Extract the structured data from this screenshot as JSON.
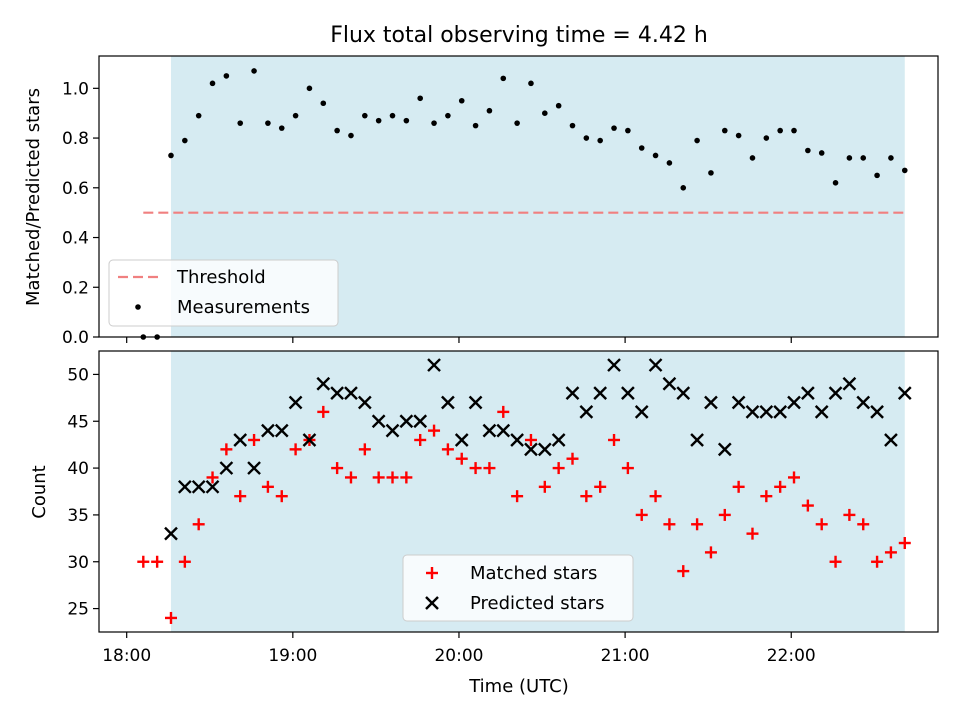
{
  "chart_data": [
    {
      "type": "scatter",
      "title": "Flux total observing time = 4.42 h",
      "xlabel": "",
      "ylabel": "Matched/Predicted stars",
      "xlim": [
        "17:50",
        "22:53"
      ],
      "ylim": [
        0.0,
        1.13
      ],
      "yticks": [
        "0.0",
        "0.2",
        "0.4",
        "0.6",
        "0.8",
        "1.0"
      ],
      "shaded_span": [
        "18:16",
        "22:41"
      ],
      "shade_color": "#add8e6",
      "threshold": {
        "name": "Threshold",
        "value": 0.5,
        "x_range": [
          "18:06",
          "22:41"
        ],
        "color": "#f08080"
      },
      "series": [
        {
          "name": "Measurements",
          "color": "#000000",
          "marker": "dot",
          "points": [
            [
              "18:06",
              0.0
            ],
            [
              "18:11",
              0.0
            ],
            [
              "18:16",
              0.73
            ],
            [
              "18:21",
              0.79
            ],
            [
              "18:26",
              0.89
            ],
            [
              "18:31",
              1.02
            ],
            [
              "18:36",
              1.05
            ],
            [
              "18:41",
              0.86
            ],
            [
              "18:46",
              1.07
            ],
            [
              "18:51",
              0.86
            ],
            [
              "18:56",
              0.84
            ],
            [
              "19:01",
              0.89
            ],
            [
              "19:06",
              1.0
            ],
            [
              "19:11",
              0.94
            ],
            [
              "19:16",
              0.83
            ],
            [
              "19:21",
              0.81
            ],
            [
              "19:26",
              0.89
            ],
            [
              "19:31",
              0.87
            ],
            [
              "19:36",
              0.89
            ],
            [
              "19:41",
              0.87
            ],
            [
              "19:46",
              0.96
            ],
            [
              "19:51",
              0.86
            ],
            [
              "19:56",
              0.89
            ],
            [
              "20:01",
              0.95
            ],
            [
              "20:06",
              0.85
            ],
            [
              "20:11",
              0.91
            ],
            [
              "20:16",
              1.04
            ],
            [
              "20:21",
              0.86
            ],
            [
              "20:26",
              1.02
            ],
            [
              "20:31",
              0.9
            ],
            [
              "20:36",
              0.93
            ],
            [
              "20:41",
              0.85
            ],
            [
              "20:46",
              0.8
            ],
            [
              "20:51",
              0.79
            ],
            [
              "20:56",
              0.84
            ],
            [
              "21:01",
              0.83
            ],
            [
              "21:06",
              0.76
            ],
            [
              "21:11",
              0.73
            ],
            [
              "21:16",
              0.7
            ],
            [
              "21:21",
              0.6
            ],
            [
              "21:26",
              0.79
            ],
            [
              "21:31",
              0.66
            ],
            [
              "21:36",
              0.83
            ],
            [
              "21:41",
              0.81
            ],
            [
              "21:46",
              0.72
            ],
            [
              "21:51",
              0.8
            ],
            [
              "21:56",
              0.83
            ],
            [
              "22:01",
              0.83
            ],
            [
              "22:06",
              0.75
            ],
            [
              "22:11",
              0.74
            ],
            [
              "22:16",
              0.62
            ],
            [
              "22:21",
              0.72
            ],
            [
              "22:26",
              0.72
            ],
            [
              "22:31",
              0.65
            ],
            [
              "22:36",
              0.72
            ],
            [
              "22:41",
              0.67
            ]
          ]
        }
      ],
      "legend": {
        "position": "lower-left",
        "entries": [
          "Threshold",
          "Measurements"
        ]
      }
    },
    {
      "type": "scatter",
      "title": "",
      "xlabel": "Time (UTC)",
      "ylabel": "Count",
      "xlim": [
        "17:50",
        "22:53"
      ],
      "ylim": [
        22.5,
        52.5
      ],
      "yticks": [
        "25",
        "30",
        "35",
        "40",
        "45",
        "50"
      ],
      "xticks": [
        "18:00",
        "19:00",
        "20:00",
        "21:00",
        "22:00"
      ],
      "shaded_span": [
        "18:16",
        "22:41"
      ],
      "shade_color": "#add8e6",
      "series": [
        {
          "name": "Matched stars",
          "color": "#ff0000",
          "marker": "plus",
          "points": [
            [
              "18:06",
              30
            ],
            [
              "18:11",
              30
            ],
            [
              "18:16",
              24
            ],
            [
              "18:21",
              30
            ],
            [
              "18:26",
              34
            ],
            [
              "18:31",
              39
            ],
            [
              "18:36",
              42
            ],
            [
              "18:41",
              37
            ],
            [
              "18:46",
              43
            ],
            [
              "18:51",
              38
            ],
            [
              "18:56",
              37
            ],
            [
              "19:01",
              42
            ],
            [
              "19:06",
              43
            ],
            [
              "19:11",
              46
            ],
            [
              "19:16",
              40
            ],
            [
              "19:21",
              39
            ],
            [
              "19:26",
              42
            ],
            [
              "19:31",
              39
            ],
            [
              "19:36",
              39
            ],
            [
              "19:41",
              39
            ],
            [
              "19:46",
              43
            ],
            [
              "19:51",
              44
            ],
            [
              "19:56",
              42
            ],
            [
              "20:01",
              41
            ],
            [
              "20:06",
              40
            ],
            [
              "20:11",
              40
            ],
            [
              "20:16",
              46
            ],
            [
              "20:21",
              37
            ],
            [
              "20:26",
              43
            ],
            [
              "20:31",
              38
            ],
            [
              "20:36",
              40
            ],
            [
              "20:41",
              41
            ],
            [
              "20:46",
              37
            ],
            [
              "20:51",
              38
            ],
            [
              "20:56",
              43
            ],
            [
              "21:01",
              40
            ],
            [
              "21:06",
              35
            ],
            [
              "21:11",
              37
            ],
            [
              "21:16",
              34
            ],
            [
              "21:21",
              29
            ],
            [
              "21:26",
              34
            ],
            [
              "21:31",
              31
            ],
            [
              "21:36",
              35
            ],
            [
              "21:41",
              38
            ],
            [
              "21:46",
              33
            ],
            [
              "21:51",
              37
            ],
            [
              "21:56",
              38
            ],
            [
              "22:01",
              39
            ],
            [
              "22:06",
              36
            ],
            [
              "22:11",
              34
            ],
            [
              "22:16",
              30
            ],
            [
              "22:21",
              35
            ],
            [
              "22:26",
              34
            ],
            [
              "22:31",
              30
            ],
            [
              "22:36",
              31
            ],
            [
              "22:41",
              32
            ]
          ]
        },
        {
          "name": "Predicted stars",
          "color": "#000000",
          "marker": "x",
          "points": [
            [
              "18:16",
              33
            ],
            [
              "18:21",
              38
            ],
            [
              "18:26",
              38
            ],
            [
              "18:31",
              38
            ],
            [
              "18:36",
              40
            ],
            [
              "18:41",
              43
            ],
            [
              "18:46",
              40
            ],
            [
              "18:51",
              44
            ],
            [
              "18:56",
              44
            ],
            [
              "19:01",
              47
            ],
            [
              "19:06",
              43
            ],
            [
              "19:11",
              49
            ],
            [
              "19:16",
              48
            ],
            [
              "19:21",
              48
            ],
            [
              "19:26",
              47
            ],
            [
              "19:31",
              45
            ],
            [
              "19:36",
              44
            ],
            [
              "19:41",
              45
            ],
            [
              "19:46",
              45
            ],
            [
              "19:51",
              51
            ],
            [
              "19:56",
              47
            ],
            [
              "20:01",
              43
            ],
            [
              "20:06",
              47
            ],
            [
              "20:11",
              44
            ],
            [
              "20:16",
              44
            ],
            [
              "20:21",
              43
            ],
            [
              "20:26",
              42
            ],
            [
              "20:31",
              42
            ],
            [
              "20:36",
              43
            ],
            [
              "20:41",
              48
            ],
            [
              "20:46",
              46
            ],
            [
              "20:51",
              48
            ],
            [
              "20:56",
              51
            ],
            [
              "21:01",
              48
            ],
            [
              "21:06",
              46
            ],
            [
              "21:11",
              51
            ],
            [
              "21:16",
              49
            ],
            [
              "21:21",
              48
            ],
            [
              "21:26",
              43
            ],
            [
              "21:31",
              47
            ],
            [
              "21:36",
              42
            ],
            [
              "21:41",
              47
            ],
            [
              "21:46",
              46
            ],
            [
              "21:51",
              46
            ],
            [
              "21:56",
              46
            ],
            [
              "22:01",
              47
            ],
            [
              "22:06",
              48
            ],
            [
              "22:11",
              46
            ],
            [
              "22:16",
              48
            ],
            [
              "22:21",
              49
            ],
            [
              "22:26",
              47
            ],
            [
              "22:31",
              46
            ],
            [
              "22:36",
              43
            ],
            [
              "22:41",
              48
            ]
          ]
        }
      ],
      "legend": {
        "position": "lower-center",
        "entries": [
          "Matched stars",
          "Predicted stars"
        ]
      }
    }
  ]
}
